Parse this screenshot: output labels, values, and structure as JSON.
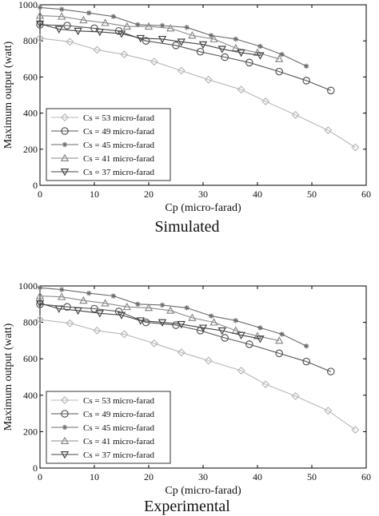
{
  "chart_data": [
    {
      "type": "line",
      "caption": "Simulated",
      "xlabel": "Cp (micro-farad)",
      "ylabel": "Maximum output (watt)",
      "xlim": [
        0,
        60
      ],
      "ylim": [
        0,
        1000
      ],
      "xticks": [
        0,
        10,
        20,
        30,
        40,
        50,
        60
      ],
      "yticks": [
        0,
        200,
        400,
        600,
        800,
        1000
      ],
      "grid": false,
      "legend_position": "bottom-left",
      "series": [
        {
          "name": "Cs = 53 micro-farad",
          "marker": "diamond",
          "color": "#b8b8b8",
          "x": [
            0,
            5.5,
            10.5,
            15.5,
            21,
            26,
            31,
            37,
            41.5,
            47,
            53,
            58
          ],
          "y": [
            815,
            795,
            750,
            725,
            685,
            635,
            585,
            530,
            465,
            390,
            305,
            210
          ]
        },
        {
          "name": "Cs = 49 micro-farad",
          "marker": "circle",
          "color": "#555555",
          "x": [
            0,
            5,
            10,
            14.5,
            19.5,
            25,
            29.5,
            34,
            38.5,
            44,
            49,
            53.5
          ],
          "y": [
            890,
            885,
            870,
            855,
            800,
            775,
            740,
            710,
            680,
            630,
            580,
            525
          ]
        },
        {
          "name": "Cs = 45 micro-farad",
          "marker": "star",
          "color": "#6a6a6a",
          "x": [
            0,
            4,
            9,
            13.5,
            18,
            22.5,
            27,
            31.5,
            36,
            40.5,
            44.5,
            49
          ],
          "y": [
            985,
            975,
            955,
            935,
            890,
            885,
            875,
            830,
            810,
            770,
            725,
            660
          ]
        },
        {
          "name": "Cs = 41 micro-farad",
          "marker": "triangle-up",
          "color": "#8a8a8a",
          "x": [
            0,
            4,
            8,
            12,
            16,
            20,
            24,
            28,
            32,
            36,
            40,
            44
          ],
          "y": [
            940,
            935,
            915,
            900,
            880,
            880,
            870,
            830,
            810,
            760,
            735,
            700
          ]
        },
        {
          "name": "Cs = 37 micro-farad",
          "marker": "triangle-down",
          "color": "#444444",
          "x": [
            0,
            3.5,
            7,
            11,
            15,
            18.5,
            22.5,
            26,
            30,
            33.5,
            37,
            40.5
          ],
          "y": [
            895,
            865,
            855,
            850,
            840,
            815,
            810,
            795,
            780,
            755,
            735,
            720
          ]
        }
      ]
    },
    {
      "type": "line",
      "caption": "Experimental",
      "xlabel": "Cp (micro-farad)",
      "ylabel": "Maximum output (watt)",
      "xlim": [
        0,
        60
      ],
      "ylim": [
        0,
        1000
      ],
      "xticks": [
        0,
        10,
        20,
        30,
        40,
        50,
        60
      ],
      "yticks": [
        0,
        200,
        400,
        600,
        800,
        1000
      ],
      "grid": false,
      "legend_position": "bottom-left",
      "series": [
        {
          "name": "Cs = 53 micro-farad",
          "marker": "diamond",
          "color": "#b8b8b8",
          "x": [
            0,
            5.5,
            10.5,
            15.5,
            21,
            26,
            31,
            37,
            41.5,
            47,
            53,
            58
          ],
          "y": [
            815,
            795,
            755,
            735,
            685,
            635,
            590,
            535,
            460,
            395,
            315,
            210
          ]
        },
        {
          "name": "Cs = 49 micro-farad",
          "marker": "circle",
          "color": "#555555",
          "x": [
            0,
            5,
            10,
            14.5,
            19.5,
            25,
            29.5,
            34,
            38.5,
            44,
            49,
            53.5
          ],
          "y": [
            900,
            885,
            875,
            860,
            800,
            785,
            755,
            715,
            680,
            630,
            585,
            530
          ]
        },
        {
          "name": "Cs = 45 micro-farad",
          "marker": "star",
          "color": "#6a6a6a",
          "x": [
            0,
            4,
            9,
            13.5,
            18,
            22.5,
            27,
            31.5,
            36,
            40.5,
            44.5,
            49
          ],
          "y": [
            990,
            980,
            960,
            945,
            900,
            895,
            880,
            835,
            810,
            770,
            735,
            670
          ]
        },
        {
          "name": "Cs = 41 micro-farad",
          "marker": "triangle-up",
          "color": "#8a8a8a",
          "x": [
            0,
            4,
            8,
            12,
            16,
            20,
            24,
            28,
            32,
            36,
            40,
            44
          ],
          "y": [
            945,
            940,
            920,
            905,
            885,
            880,
            865,
            825,
            800,
            755,
            725,
            700
          ]
        },
        {
          "name": "Cs = 37 micro-farad",
          "marker": "triangle-down",
          "color": "#444444",
          "x": [
            0,
            3.5,
            7,
            11,
            15,
            18.5,
            22.5,
            26,
            30,
            33.5,
            37,
            40.5
          ],
          "y": [
            905,
            875,
            865,
            850,
            840,
            810,
            800,
            790,
            770,
            755,
            730,
            710
          ]
        }
      ]
    }
  ]
}
